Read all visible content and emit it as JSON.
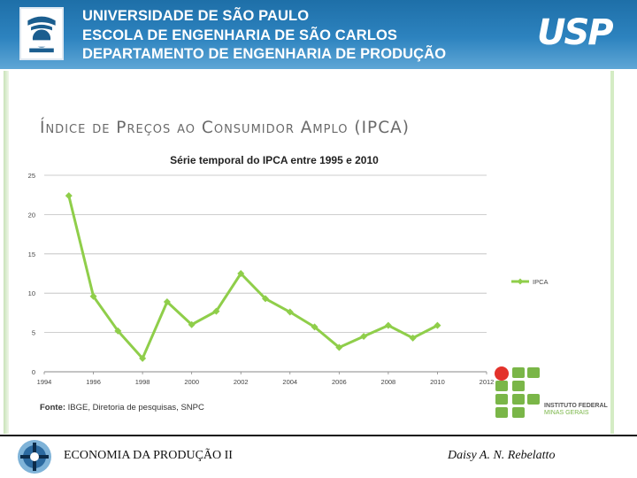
{
  "header": {
    "line1": "UNIVERSIDADE DE SÃO PAULO",
    "line2": "ESCOLA DE ENGENHARIA DE SÃO CARLOS",
    "line3": "DEPARTAMENTO DE ENGENHARIA DE PRODUÇÃO",
    "usp_logo_text": "USP"
  },
  "slide_title": "Índice de Preços ao Consumidor Amplo (IPCA)",
  "chart_data": {
    "type": "line",
    "title": "Série temporal do IPCA entre 1995 e 2010",
    "xlabel": "",
    "ylabel": "",
    "xlim": [
      1994,
      2012
    ],
    "ylim": [
      0,
      25
    ],
    "x_ticks": [
      "1994",
      "1996",
      "1998",
      "2000",
      "2002",
      "2004",
      "2006",
      "2008",
      "2010",
      "2012"
    ],
    "y_ticks": [
      "0",
      "5",
      "10",
      "15",
      "20",
      "25"
    ],
    "grid": true,
    "legend_position": "right",
    "series": [
      {
        "name": "IPCA",
        "color": "#8fce4a",
        "x": [
          1995,
          1996,
          1997,
          1998,
          1999,
          2000,
          2001,
          2002,
          2003,
          2004,
          2005,
          2006,
          2007,
          2008,
          2009,
          2010
        ],
        "y": [
          22.4,
          9.6,
          5.2,
          1.7,
          8.9,
          6.0,
          7.7,
          12.5,
          9.3,
          7.6,
          5.7,
          3.1,
          4.5,
          5.9,
          4.3,
          5.9
        ]
      }
    ]
  },
  "source_label": "Fonte:",
  "source_text": "IBGE, Diretoria de pesquisas, SNPC",
  "if_logo_text_1": "INSTITUTO FEDERAL",
  "if_logo_text_2": "MINAS GERAIS",
  "footer": {
    "left": "ECONOMIA DA PRODUÇÃO II",
    "right": "Daisy A. N. Rebelatto"
  },
  "colors": {
    "header_blue": "#2d83bf",
    "series_green": "#8fce4a",
    "if_green": "#7ab648",
    "if_red": "#e3322b"
  }
}
